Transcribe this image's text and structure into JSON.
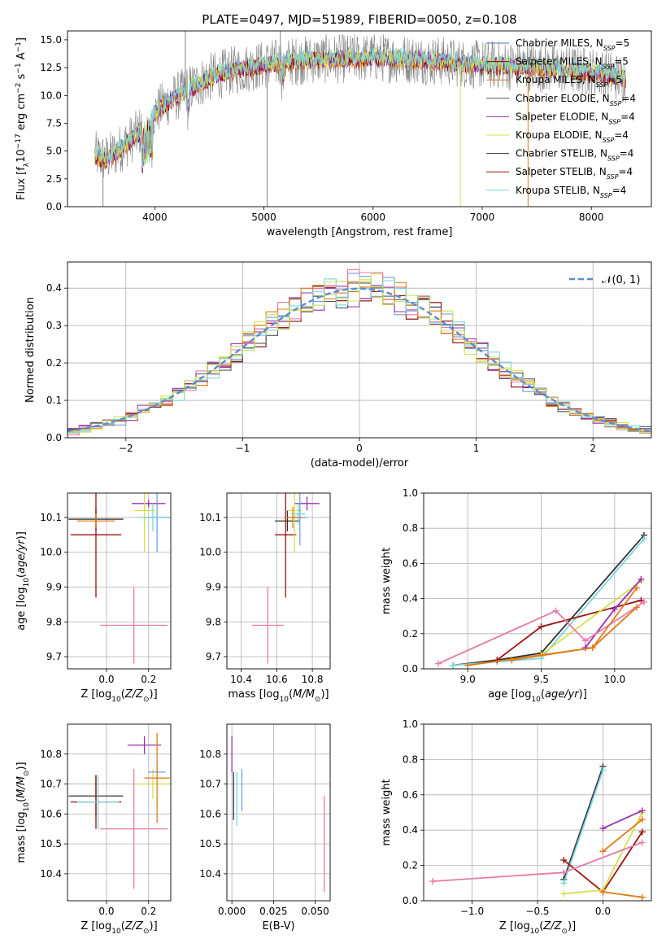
{
  "figure": {
    "title": "PLATE=0497, MJD=51989, FIBERID=0050, z=0.108"
  },
  "colors": [
    "#4c72b0",
    "#8b0000",
    "#e07b1a",
    "#555555",
    "#9b30b0",
    "#d4e04a",
    "#333333",
    "#a01010",
    "#7ad7dc",
    "#e87aa8",
    "#6fa0e0",
    "#c8e05a"
  ],
  "legend_labels": [
    "Chabrier MILES, N<sub>SSP</sub>=5",
    "Salpeter MILES, N<sub>SSP</sub>=5",
    "Kroupa MILES, N<sub>SSP</sub>=5",
    "Chabrier ELODIE, N<sub>SSP</sub>=4",
    "Salpeter ELODIE, N<sub>SSP</sub>=4",
    "Kroupa ELODIE, N<sub>SSP</sub>=4",
    "Chabrier STELIB, N<sub>SSP</sub>=4",
    "Salpeter STELIB, N<sub>SSP</sub>=4",
    "Kroupa STELIB, N<sub>SSP</sub>=4"
  ],
  "legend_plain": [
    {
      "model": "Chabrier MILES",
      "n": "N",
      "sub": "SSP",
      "val": "=5"
    },
    {
      "model": "Salpeter MILES",
      "n": "N",
      "sub": "SSP",
      "val": "=5"
    },
    {
      "model": "Kroupa MILES",
      "n": "N",
      "sub": "SSP",
      "val": "=5"
    },
    {
      "model": "Chabrier ELODIE",
      "n": "N",
      "sub": "SSP",
      "val": "=4"
    },
    {
      "model": "Salpeter ELODIE",
      "n": "N",
      "sub": "SSP",
      "val": "=4"
    },
    {
      "model": "Kroupa ELODIE",
      "n": "N",
      "sub": "SSP",
      "val": "=4"
    },
    {
      "model": "Chabrier STELIB",
      "n": "N",
      "sub": "SSP",
      "val": "=4"
    },
    {
      "model": "Salpeter STELIB",
      "n": "N",
      "sub": "SSP",
      "val": "=4"
    },
    {
      "model": "Kroupa STELIB",
      "n": "N",
      "sub": "SSP",
      "val": "=4"
    }
  ],
  "chart_data": [
    {
      "id": "spectrum",
      "type": "line",
      "title": "PLATE=0497, MJD=51989, FIBERID=0050, z=0.108",
      "xlabel": "wavelength [Angstrom, rest frame]",
      "ylabel": "Flux [f_λ 10^-17 erg cm^-2 s^-1 A^-1]",
      "xlim": [
        3200,
        8550
      ],
      "ylim": [
        0,
        15.8
      ],
      "xticks": [
        4000,
        5000,
        6000,
        7000,
        8000
      ],
      "yticks": [
        0.0,
        2.5,
        5.0,
        7.5,
        10.0,
        12.5,
        15.0
      ],
      "grid": false,
      "legend": "upper right",
      "continuum": {
        "x": [
          3450,
          3550,
          3650,
          3750,
          3850,
          3950,
          4100,
          4300,
          4500,
          4700,
          4900,
          5100,
          5400,
          5700,
          6000,
          6300,
          6600,
          6900,
          7200,
          7500,
          7800,
          8100,
          8300
        ],
        "y": [
          4.6,
          4.3,
          4.9,
          5.8,
          6.6,
          8.0,
          9.3,
          10.5,
          11.6,
          12.2,
          12.6,
          12.9,
          13.2,
          13.3,
          13.4,
          13.3,
          13.1,
          12.8,
          12.7,
          12.5,
          12.3,
          12.0,
          11.5
        ]
      },
      "spikes": [
        {
          "x": 3525,
          "y": 0.0
        },
        {
          "x": 5030,
          "y": 0.0
        },
        {
          "x": 6800,
          "y": 0.0
        },
        {
          "x": 7420,
          "y": 0.0
        },
        {
          "x": 4280,
          "y": 15.8
        },
        {
          "x": 5150,
          "y": 15.8
        }
      ]
    },
    {
      "id": "residuals",
      "type": "histogram",
      "xlabel": "(data-model)/error",
      "ylabel": "Normed distribution",
      "xlim": [
        -2.5,
        2.5
      ],
      "ylim": [
        0,
        0.47
      ],
      "xticks": [
        -2,
        -1,
        0,
        1,
        2
      ],
      "yticks": [
        0.0,
        0.1,
        0.2,
        0.3,
        0.4
      ],
      "grid": true,
      "legend": "upper right",
      "reference_label": "𝒩(0, 1)",
      "bin_width": 0.1
    },
    {
      "id": "age_vs_Z",
      "type": "scatter",
      "xlabel": "Z [log10(Z/Z⊙)]",
      "ylabel": "age [log10(age/yr)]",
      "xlim": [
        -0.185,
        0.305
      ],
      "ylim": [
        9.665,
        10.17
      ],
      "xticks": [
        0.0,
        0.2
      ],
      "yticks": [
        9.7,
        9.8,
        9.9,
        10.0,
        10.1
      ],
      "grid": true,
      "points": [
        {
          "x": -0.05,
          "y": 10.095,
          "xerr": 0.13,
          "yerr": 0.03
        },
        {
          "x": -0.05,
          "y": 10.05,
          "xerr": 0.12,
          "yerr": 0.18
        },
        {
          "x": 0.2,
          "y": 10.14,
          "xerr": 0.08,
          "yerr": 0.01
        },
        {
          "x": 0.18,
          "y": 10.12,
          "xerr": 0.05,
          "yerr": 0.12
        },
        {
          "x": 0.24,
          "y": 10.1,
          "xerr": 0.06,
          "yerr": 0.1
        },
        {
          "x": 0.13,
          "y": 9.79,
          "xerr": 0.16,
          "yerr": 0.11
        },
        {
          "x": -0.05,
          "y": 10.09,
          "xerr": 0.09,
          "yerr": 0.02
        },
        {
          "x": 0.22,
          "y": 10.1,
          "xerr": 0.07,
          "yerr": 0.04
        }
      ]
    },
    {
      "id": "age_vs_mass",
      "type": "scatter",
      "xlabel": "mass [log10(M/M⊙)]",
      "ylabel": "",
      "xlim": [
        10.32,
        10.9
      ],
      "ylim": [
        9.665,
        10.17
      ],
      "xticks": [
        10.4,
        10.6,
        10.8
      ],
      "yticks": [
        9.7,
        9.8,
        9.9,
        10.0,
        10.1
      ],
      "grid": true,
      "points": [
        {
          "x": 10.66,
          "y": 10.09,
          "xerr": 0.07,
          "yerr": 0.03
        },
        {
          "x": 10.65,
          "y": 10.05,
          "xerr": 0.06,
          "yerr": 0.18
        },
        {
          "x": 10.77,
          "y": 10.14,
          "xerr": 0.07,
          "yerr": 0.02
        },
        {
          "x": 10.7,
          "y": 10.12,
          "xerr": 0.04,
          "yerr": 0.12
        },
        {
          "x": 10.73,
          "y": 10.1,
          "xerr": 0.04,
          "yerr": 0.08
        },
        {
          "x": 10.55,
          "y": 9.79,
          "xerr": 0.09,
          "yerr": 0.11
        },
        {
          "x": 10.69,
          "y": 10.1,
          "xerr": 0.05,
          "yerr": 0.03
        },
        {
          "x": 10.72,
          "y": 10.11,
          "xerr": 0.04,
          "yerr": 0.03
        }
      ]
    },
    {
      "id": "mass_weight_vs_age",
      "type": "line",
      "xlabel": "age [log10(age/yr)]",
      "ylabel": "mass weight",
      "xlim": [
        8.7,
        10.25
      ],
      "ylim": [
        0,
        1.0
      ],
      "xticks": [
        9.0,
        9.5,
        10.0
      ],
      "yticks": [
        0.0,
        0.2,
        0.4,
        0.6,
        0.8,
        1.0
      ],
      "grid": true,
      "series": [
        {
          "x": [
            8.9,
            9.2,
            9.5,
            10.2
          ],
          "y": [
            0.02,
            0.05,
            0.09,
            0.76
          ]
        },
        {
          "x": [
            8.9,
            9.2,
            9.5,
            10.2
          ],
          "y": [
            0.02,
            0.04,
            0.06,
            0.74
          ]
        },
        {
          "x": [
            9.2,
            9.5,
            10.18
          ],
          "y": [
            0.05,
            0.24,
            0.39
          ]
        },
        {
          "x": [
            9.3,
            9.5,
            10.18
          ],
          "y": [
            0.05,
            0.08,
            0.5
          ]
        },
        {
          "x": [
            9.8,
            10.0,
            10.18
          ],
          "y": [
            0.12,
            0.34,
            0.51
          ]
        },
        {
          "x": [
            8.8,
            9.6,
            9.8,
            10.2
          ],
          "y": [
            0.03,
            0.33,
            0.16,
            0.38
          ]
        },
        {
          "x": [
            9.3,
            9.85,
            10.15
          ],
          "y": [
            0.05,
            0.12,
            0.46
          ]
        },
        {
          "x": [
            9.0,
            9.85,
            10.15
          ],
          "y": [
            0.02,
            0.12,
            0.35
          ]
        }
      ]
    },
    {
      "id": "mass_vs_Z",
      "type": "scatter",
      "xlabel": "Z [log10(Z/Z⊙)]",
      "ylabel": "mass [log10(M/M⊙)]",
      "xlim": [
        -0.185,
        0.305
      ],
      "ylim": [
        10.31,
        10.9
      ],
      "xticks": [
        0.0,
        0.2
      ],
      "yticks": [
        10.4,
        10.5,
        10.6,
        10.7,
        10.8
      ],
      "grid": true,
      "points": [
        {
          "x": -0.05,
          "y": 10.66,
          "xerr": 0.13,
          "yerr": 0.07
        },
        {
          "x": -0.05,
          "y": 10.64,
          "xerr": 0.12,
          "yerr": 0.09
        },
        {
          "x": 0.18,
          "y": 10.83,
          "xerr": 0.08,
          "yerr": 0.03
        },
        {
          "x": 0.22,
          "y": 10.7,
          "xerr": 0.08,
          "yerr": 0.05
        },
        {
          "x": 0.24,
          "y": 10.74,
          "xerr": 0.04,
          "yerr": 0.02
        },
        {
          "x": 0.13,
          "y": 10.55,
          "xerr": 0.16,
          "yerr": 0.2
        },
        {
          "x": 0.24,
          "y": 10.72,
          "xerr": 0.06,
          "yerr": 0.15
        },
        {
          "x": -0.04,
          "y": 10.64,
          "xerr": 0.1,
          "yerr": 0.09
        }
      ]
    },
    {
      "id": "mass_vs_ebv",
      "type": "scatter",
      "xlabel": "E(B-V)",
      "ylabel": "",
      "xlim": [
        -0.003,
        0.059
      ],
      "ylim": [
        10.31,
        10.9
      ],
      "xticks": [
        0.0,
        0.025,
        0.05
      ],
      "ytick_labels_only": [
        10.4,
        10.5,
        10.6,
        10.7,
        10.8
      ],
      "grid": true,
      "points": [
        {
          "x": 0.0,
          "y": 10.8,
          "yerr": 0.06
        },
        {
          "x": 0.001,
          "y": 10.66,
          "yerr": 0.08
        },
        {
          "x": 0.003,
          "y": 10.65,
          "yerr": 0.09
        },
        {
          "x": 0.006,
          "y": 10.68,
          "yerr": 0.07
        },
        {
          "x": 0.0555,
          "y": 10.5,
          "yerr": 0.16
        }
      ]
    },
    {
      "id": "mass_weight_vs_Z",
      "type": "line",
      "xlabel": "Z [log10(Z/Z⊙)]",
      "ylabel": "mass weight",
      "xlim": [
        -1.37,
        0.37
      ],
      "ylim": [
        0,
        1.0
      ],
      "xticks": [
        -1.0,
        -0.5,
        0.0
      ],
      "yticks": [
        0.0,
        0.2,
        0.4,
        0.6,
        0.8,
        1.0
      ],
      "grid": true,
      "series": [
        {
          "x": [
            -0.3,
            0.0
          ],
          "y": [
            0.12,
            0.76
          ]
        },
        {
          "x": [
            -0.3,
            0.0
          ],
          "y": [
            0.1,
            0.74
          ]
        },
        {
          "x": [
            -0.3,
            0.0,
            0.3
          ],
          "y": [
            0.23,
            0.05,
            0.39
          ]
        },
        {
          "x": [
            -0.3,
            0.0,
            0.3
          ],
          "y": [
            0.04,
            0.06,
            0.5
          ]
        },
        {
          "x": [
            0.0,
            0.3
          ],
          "y": [
            0.41,
            0.51
          ]
        },
        {
          "x": [
            -1.3,
            -0.3,
            0.3
          ],
          "y": [
            0.11,
            0.16,
            0.33
          ]
        },
        {
          "x": [
            0.0,
            0.3
          ],
          "y": [
            0.28,
            0.46
          ]
        },
        {
          "x": [
            0.0,
            0.3
          ],
          "y": [
            0.05,
            0.02
          ]
        }
      ]
    }
  ]
}
